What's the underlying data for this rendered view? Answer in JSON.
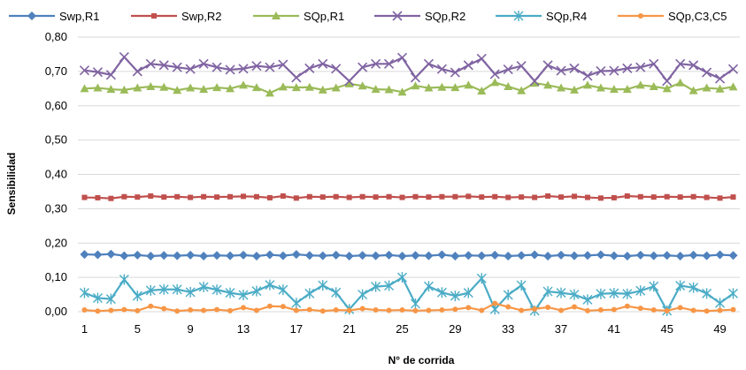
{
  "chart_data": {
    "type": "line",
    "title": "",
    "xlabel": "N° de corrida",
    "ylabel": "Sensibilidad",
    "x": [
      1,
      2,
      3,
      4,
      5,
      6,
      7,
      8,
      9,
      10,
      11,
      12,
      13,
      14,
      15,
      16,
      17,
      18,
      19,
      20,
      21,
      22,
      23,
      24,
      25,
      26,
      27,
      28,
      29,
      30,
      31,
      32,
      33,
      34,
      35,
      36,
      37,
      38,
      39,
      40,
      41,
      42,
      43,
      44,
      45,
      46,
      47,
      48,
      49,
      50
    ],
    "x_ticks": [
      "1",
      "5",
      "9",
      "13",
      "17",
      "21",
      "25",
      "29",
      "33",
      "37",
      "41",
      "45",
      "49"
    ],
    "y_ticks": [
      "0,00",
      "0,10",
      "0,20",
      "0,30",
      "0,40",
      "0,50",
      "0,60",
      "0,70",
      "0,80"
    ],
    "ylim": [
      0,
      0.8
    ],
    "grid": "horizontal",
    "legend_position": "top",
    "series": [
      {
        "name": "Swp,R1",
        "color": "#4f81bd",
        "marker": "diamond",
        "values": [
          0.167,
          0.166,
          0.168,
          0.163,
          0.165,
          0.162,
          0.164,
          0.163,
          0.165,
          0.162,
          0.164,
          0.163,
          0.165,
          0.162,
          0.166,
          0.163,
          0.167,
          0.164,
          0.163,
          0.165,
          0.162,
          0.164,
          0.163,
          0.165,
          0.162,
          0.164,
          0.163,
          0.166,
          0.162,
          0.164,
          0.163,
          0.165,
          0.162,
          0.164,
          0.166,
          0.162,
          0.165,
          0.163,
          0.164,
          0.166,
          0.163,
          0.162,
          0.165,
          0.163,
          0.164,
          0.162,
          0.165,
          0.163,
          0.166,
          0.164
        ]
      },
      {
        "name": "Swp,R2",
        "color": "#c0504d",
        "marker": "square",
        "values": [
          0.333,
          0.332,
          0.33,
          0.335,
          0.334,
          0.337,
          0.334,
          0.335,
          0.333,
          0.335,
          0.334,
          0.335,
          0.336,
          0.335,
          0.332,
          0.337,
          0.331,
          0.335,
          0.334,
          0.335,
          0.333,
          0.335,
          0.334,
          0.335,
          0.333,
          0.335,
          0.334,
          0.335,
          0.335,
          0.336,
          0.334,
          0.335,
          0.333,
          0.334,
          0.333,
          0.337,
          0.334,
          0.336,
          0.333,
          0.331,
          0.332,
          0.337,
          0.335,
          0.334,
          0.335,
          0.334,
          0.335,
          0.333,
          0.331,
          0.334
        ]
      },
      {
        "name": "SQp,R1",
        "color": "#9bbb59",
        "marker": "triangle",
        "values": [
          0.65,
          0.652,
          0.648,
          0.646,
          0.652,
          0.656,
          0.654,
          0.645,
          0.652,
          0.648,
          0.653,
          0.65,
          0.66,
          0.653,
          0.637,
          0.655,
          0.653,
          0.654,
          0.646,
          0.652,
          0.664,
          0.658,
          0.648,
          0.647,
          0.64,
          0.658,
          0.652,
          0.654,
          0.653,
          0.66,
          0.643,
          0.668,
          0.656,
          0.644,
          0.666,
          0.66,
          0.652,
          0.646,
          0.66,
          0.652,
          0.648,
          0.648,
          0.66,
          0.656,
          0.65,
          0.667,
          0.644,
          0.652,
          0.649,
          0.655
        ]
      },
      {
        "name": "SQp,R2",
        "color": "#8064a2",
        "marker": "x",
        "values": [
          0.703,
          0.698,
          0.69,
          0.742,
          0.7,
          0.722,
          0.718,
          0.712,
          0.707,
          0.722,
          0.712,
          0.705,
          0.708,
          0.716,
          0.712,
          0.72,
          0.682,
          0.709,
          0.722,
          0.708,
          0.672,
          0.712,
          0.722,
          0.722,
          0.74,
          0.682,
          0.722,
          0.707,
          0.697,
          0.718,
          0.737,
          0.692,
          0.706,
          0.716,
          0.672,
          0.718,
          0.702,
          0.709,
          0.687,
          0.701,
          0.702,
          0.709,
          0.712,
          0.722,
          0.672,
          0.722,
          0.718,
          0.697,
          0.679,
          0.707
        ]
      },
      {
        "name": "SQp,R4",
        "color": "#4bacc6",
        "marker": "asterisk",
        "values": [
          0.055,
          0.04,
          0.037,
          0.094,
          0.046,
          0.062,
          0.065,
          0.065,
          0.057,
          0.072,
          0.064,
          0.055,
          0.049,
          0.06,
          0.078,
          0.064,
          0.025,
          0.053,
          0.077,
          0.056,
          0.007,
          0.05,
          0.073,
          0.076,
          0.1,
          0.023,
          0.074,
          0.056,
          0.046,
          0.055,
          0.097,
          0.007,
          0.049,
          0.077,
          0.003,
          0.059,
          0.055,
          0.05,
          0.035,
          0.052,
          0.054,
          0.052,
          0.061,
          0.074,
          0.003,
          0.076,
          0.07,
          0.053,
          0.025,
          0.053
        ]
      },
      {
        "name": "SQp,C3,C5",
        "color": "#f79646",
        "marker": "circle",
        "values": [
          0.005,
          0.002,
          0.004,
          0.006,
          0.003,
          0.016,
          0.009,
          0.002,
          0.005,
          0.004,
          0.006,
          0.003,
          0.012,
          0.004,
          0.016,
          0.015,
          0.004,
          0.006,
          0.002,
          0.005,
          0.004,
          0.009,
          0.005,
          0.004,
          0.005,
          0.003,
          0.004,
          0.005,
          0.007,
          0.012,
          0.004,
          0.024,
          0.014,
          0.004,
          0.008,
          0.013,
          0.004,
          0.014,
          0.003,
          0.005,
          0.006,
          0.016,
          0.01,
          0.005,
          0.003,
          0.012,
          0.004,
          0.002,
          0.004,
          0.006
        ]
      }
    ]
  }
}
